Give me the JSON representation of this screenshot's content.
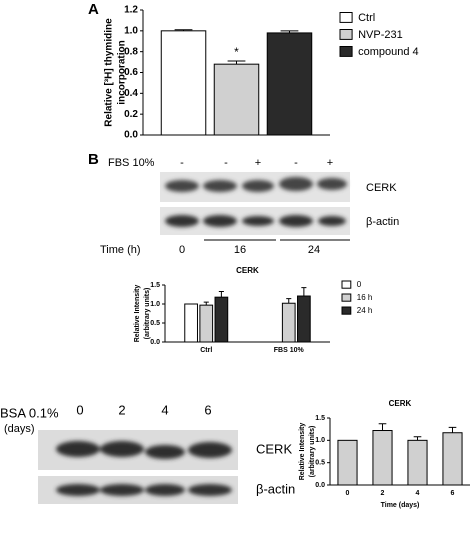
{
  "chart_data": [
    {
      "type": "bar",
      "ylabel": [
        "Relative [³H] thymidine",
        "incorporation"
      ],
      "categories": [
        null
      ],
      "series": [
        {
          "name": "Ctrl",
          "color": "#ffffff",
          "values": [
            1.0
          ],
          "errors": [
            0.01
          ]
        },
        {
          "name": "NVP-231",
          "color": "#d0d0d0",
          "values": [
            0.68
          ],
          "errors": [
            0.03
          ]
        },
        {
          "name": "compound 4",
          "color": "#2a2a2a",
          "values": [
            0.98
          ],
          "errors": [
            0.02
          ]
        }
      ],
      "annotation": "*",
      "ylim": [
        0,
        1.2
      ],
      "yticks": [
        {
          "value": 0,
          "label": "0.0"
        },
        0.2,
        0.4,
        0.6,
        0.8,
        {
          "value": 1,
          "label": "1.0"
        },
        1.2
      ]
    },
    {
      "type": "bar",
      "title": "CERK",
      "ylabel": [
        "Relative Intensity",
        "(arbitrary units)"
      ],
      "categories": [
        "Ctrl",
        "FBS 10%"
      ],
      "series": [
        {
          "name": "0",
          "color": "#ffffff",
          "values": [
            1.0,
            null
          ],
          "errors": [
            0,
            null
          ]
        },
        {
          "name": "16 h",
          "color": "#d0d0d0",
          "values": [
            0.97,
            1.02
          ],
          "errors": [
            0.08,
            0.12
          ]
        },
        {
          "name": "24 h",
          "color": "#2a2a2a",
          "values": [
            1.18,
            1.21
          ],
          "errors": [
            0.15,
            0.22
          ]
        }
      ],
      "ylim": [
        0,
        1.5
      ],
      "yticks": [
        {
          "value": 0,
          "label": "0.0"
        },
        0.5,
        {
          "value": 1,
          "label": "1.0"
        },
        1.5
      ]
    },
    {
      "type": "bar",
      "title": "CERK",
      "ylabel": [
        "Relative Intensity",
        "(arbitrary units)"
      ],
      "xlabel": "Time (days)",
      "categories": [
        "0",
        "2",
        "4",
        "6"
      ],
      "series": [
        {
          "color": "#d0d0d0",
          "values": [
            1.0,
            1.22,
            1.0,
            1.17
          ],
          "errors": [
            0,
            0.15,
            0.08,
            0.12
          ]
        }
      ],
      "ylim": [
        0,
        1.5
      ],
      "yticks": [
        {
          "value": 0,
          "label": "0.0"
        },
        0.5,
        {
          "value": 1,
          "label": "1.0"
        },
        1.5
      ]
    }
  ],
  "panel_labels": [
    "A",
    "B"
  ],
  "blot_b": {
    "treatment": "FBS 10%",
    "signs": [
      "-",
      "-",
      "+",
      "-",
      "+"
    ],
    "rows": [
      "CERK",
      "β-actin"
    ],
    "time_label": "Time (h)",
    "times": [
      "0",
      "16",
      "24"
    ]
  },
  "blot_c": {
    "treatment": [
      "BSA 0.1%",
      "(days)"
    ],
    "days": [
      "0",
      "2",
      "4",
      "6"
    ],
    "rows": [
      "CERK",
      "β-actin"
    ]
  }
}
